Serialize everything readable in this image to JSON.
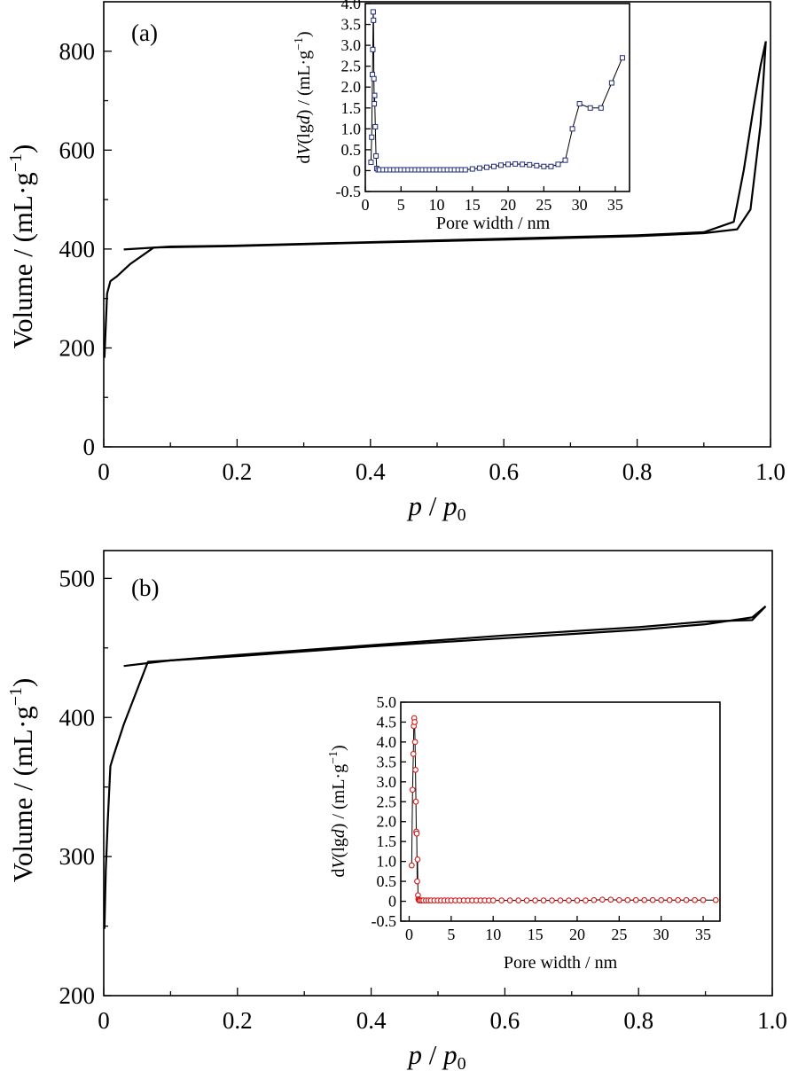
{
  "chart_data": [
    {
      "id": "a",
      "type": "line",
      "panel_label": "(a)",
      "xlabel": {
        "italic": "p",
        "sep": " / ",
        "italic2": "p",
        "sub": "0"
      },
      "ylabel": {
        "main": "Volume / (mL·g",
        "sup": "−1",
        "close": ")"
      },
      "xlim": [
        0,
        1.0
      ],
      "ylim": [
        0,
        900
      ],
      "xticks": [
        0,
        0.2,
        0.4,
        0.6,
        0.8,
        1.0
      ],
      "xtick_labels": [
        "0",
        "0.2",
        "0.4",
        "0.6",
        "0.8",
        "1.0"
      ],
      "yticks": [
        0,
        200,
        400,
        600,
        800
      ],
      "ytick_labels": [
        "0",
        "200",
        "400",
        "600",
        "800"
      ],
      "series": [
        {
          "points": [
            [
              0.001,
              180
            ],
            [
              0.005,
              310
            ],
            [
              0.01,
              335
            ],
            [
              0.02,
              345
            ],
            [
              0.04,
              370
            ],
            [
              0.075,
              403
            ],
            [
              0.2,
              406
            ],
            [
              0.4,
              413
            ],
            [
              0.6,
              419
            ],
            [
              0.8,
              426
            ],
            [
              0.9,
              432
            ],
            [
              0.95,
              440
            ],
            [
              0.97,
              480
            ],
            [
              0.985,
              650
            ],
            [
              0.993,
              820
            ]
          ]
        },
        {
          "points": [
            [
              0.993,
              820
            ],
            [
              0.985,
              770
            ],
            [
              0.975,
              690
            ],
            [
              0.96,
              560
            ],
            [
              0.945,
              455
            ],
            [
              0.9,
              434
            ],
            [
              0.8,
              428
            ],
            [
              0.6,
              421
            ],
            [
              0.4,
              414
            ],
            [
              0.2,
              407
            ],
            [
              0.1,
              405
            ],
            [
              0.03,
              399
            ]
          ]
        }
      ],
      "inset": {
        "type": "line",
        "xlabel": "Pore width / nm",
        "ylabel": {
          "pre": "d",
          "v": "V",
          "mid": "(lg",
          "d": "d",
          "post": ") / (mL·g",
          "sup": "−1",
          "close": ")"
        },
        "xlim": [
          0,
          37
        ],
        "ylim": [
          -0.5,
          4.0
        ],
        "xticks": [
          0,
          5,
          10,
          15,
          20,
          25,
          30,
          35
        ],
        "xtick_labels": [
          "0",
          "5",
          "10",
          "15",
          "20",
          "25",
          "30",
          "35"
        ],
        "yticks": [
          -0.5,
          0,
          0.5,
          1.0,
          1.5,
          2.0,
          2.5,
          3.0,
          3.5,
          4.0
        ],
        "ytick_labels": [
          "-0.5",
          "0",
          "0.5",
          "1.0",
          "1.5",
          "2.0",
          "2.5",
          "3.0",
          "3.5",
          "4.0"
        ],
        "marker": "square",
        "marker_color": "#1f2a7a",
        "x": [
          0.8,
          0.9,
          1.0,
          1.05,
          1.1,
          1.15,
          1.2,
          1.25,
          1.3,
          1.4,
          1.5,
          1.6,
          1.8,
          2.0,
          2.5,
          3.0,
          3.5,
          4.0,
          4.5,
          5.0,
          5.5,
          6.0,
          6.5,
          7.0,
          7.5,
          8.0,
          8.5,
          9.0,
          9.5,
          10.0,
          10.5,
          11.0,
          11.5,
          12.0,
          12.5,
          13.0,
          13.5,
          14.0,
          15.0,
          16.0,
          17.0,
          18.0,
          19.0,
          20.0,
          21.0,
          22.0,
          23.0,
          24.0,
          25.0,
          26.0,
          27.0,
          28.0,
          29.0,
          30.0,
          31.5,
          33.0,
          34.5,
          36.0
        ],
        "y": [
          0.2,
          0.8,
          2.3,
          2.9,
          3.8,
          3.6,
          2.2,
          1.6,
          1.8,
          1.05,
          0.35,
          0.05,
          0.02,
          0.02,
          0.02,
          0.02,
          0.02,
          0.02,
          0.02,
          0.02,
          0.02,
          0.02,
          0.02,
          0.02,
          0.02,
          0.02,
          0.02,
          0.02,
          0.02,
          0.02,
          0.02,
          0.02,
          0.02,
          0.02,
          0.02,
          0.02,
          0.02,
          0.02,
          0.04,
          0.06,
          0.08,
          0.1,
          0.13,
          0.15,
          0.16,
          0.15,
          0.14,
          0.12,
          0.1,
          0.1,
          0.15,
          0.25,
          1.0,
          1.6,
          1.5,
          1.5,
          2.1,
          2.7
        ]
      }
    },
    {
      "id": "b",
      "type": "line",
      "panel_label": "(b)",
      "xlabel": {
        "italic": "p",
        "sep": " / ",
        "italic2": "p",
        "sub": "0"
      },
      "ylabel": {
        "main": "Volume / (mL·g",
        "sup": "−1",
        "close": ")"
      },
      "xlim": [
        0,
        1.0
      ],
      "ylim": [
        200,
        520
      ],
      "xticks": [
        0,
        0.2,
        0.4,
        0.6,
        0.8,
        1.0
      ],
      "xtick_labels": [
        "0",
        "0.2",
        "0.4",
        "0.6",
        "0.8",
        "1.0"
      ],
      "yticks": [
        200,
        300,
        400,
        500
      ],
      "ytick_labels": [
        "200",
        "300",
        "400",
        "500"
      ],
      "series": [
        {
          "points": [
            [
              0.001,
              248
            ],
            [
              0.003,
              290
            ],
            [
              0.006,
              325
            ],
            [
              0.01,
              365
            ],
            [
              0.015,
              373
            ],
            [
              0.03,
              395
            ],
            [
              0.066,
              440
            ],
            [
              0.2,
              444
            ],
            [
              0.4,
              451
            ],
            [
              0.6,
              457
            ],
            [
              0.8,
              463
            ],
            [
              0.9,
              467
            ],
            [
              0.97,
              472
            ],
            [
              0.99,
              480
            ]
          ]
        },
        {
          "points": [
            [
              0.99,
              480
            ],
            [
              0.97,
              470
            ],
            [
              0.9,
              469
            ],
            [
              0.8,
              465
            ],
            [
              0.6,
              459
            ],
            [
              0.4,
              452
            ],
            [
              0.2,
              445
            ],
            [
              0.1,
              441
            ],
            [
              0.03,
              437
            ]
          ]
        }
      ],
      "inset": {
        "type": "line",
        "xlabel": "Pore width / nm",
        "ylabel": {
          "pre": "d",
          "v": "V",
          "mid": "(lg",
          "d": "d",
          "post": ") / (mL·g",
          "sup": "−1",
          "close": ")"
        },
        "xlim": [
          -1,
          37
        ],
        "ylim": [
          -0.5,
          5.0
        ],
        "xticks": [
          0,
          5,
          10,
          15,
          20,
          25,
          30,
          35
        ],
        "xtick_labels": [
          "0",
          "5",
          "10",
          "15",
          "20",
          "25",
          "30",
          "35"
        ],
        "yticks": [
          -0.5,
          0,
          0.5,
          1.0,
          1.5,
          2.0,
          2.5,
          3.0,
          3.5,
          4.0,
          4.5,
          5.0
        ],
        "ytick_labels": [
          "-0.5",
          "0",
          "0.5",
          "1.0",
          "1.5",
          "2.0",
          "2.5",
          "3.0",
          "3.5",
          "4.0",
          "4.5",
          "5.0"
        ],
        "marker": "circle",
        "marker_color": "#d11a1a",
        "x": [
          0.3,
          0.4,
          0.5,
          0.55,
          0.6,
          0.65,
          0.7,
          0.75,
          0.8,
          0.85,
          0.9,
          0.95,
          1.0,
          1.05,
          1.1,
          1.15,
          1.2,
          1.3,
          1.5,
          1.7,
          2.0,
          2.3,
          2.6,
          3.0,
          3.4,
          3.8,
          4.2,
          4.6,
          5.0,
          5.5,
          6.0,
          6.5,
          7.0,
          7.5,
          8.0,
          8.5,
          9.0,
          9.5,
          10.0,
          11.0,
          12.0,
          13.0,
          14.0,
          15.0,
          16.0,
          17.0,
          18.0,
          19.0,
          20.0,
          21.0,
          22.0,
          23.0,
          24.0,
          25.0,
          26.0,
          27.0,
          28.0,
          29.0,
          30.0,
          31.0,
          32.0,
          33.0,
          34.0,
          35.0,
          36.5
        ],
        "y": [
          0.9,
          2.8,
          3.7,
          4.4,
          4.6,
          4.5,
          4.0,
          3.3,
          2.5,
          1.75,
          1.7,
          0.5,
          1.05,
          0.15,
          0.05,
          0.03,
          0.02,
          0.02,
          0.02,
          0.02,
          0.02,
          0.02,
          0.02,
          0.02,
          0.02,
          0.02,
          0.02,
          0.02,
          0.02,
          0.02,
          0.02,
          0.02,
          0.02,
          0.02,
          0.02,
          0.02,
          0.02,
          0.02,
          0.02,
          0.02,
          0.02,
          0.02,
          0.02,
          0.02,
          0.02,
          0.02,
          0.02,
          0.02,
          0.02,
          0.02,
          0.03,
          0.04,
          0.04,
          0.03,
          0.03,
          0.03,
          0.03,
          0.03,
          0.03,
          0.03,
          0.03,
          0.03,
          0.03,
          0.03,
          0.03
        ]
      }
    }
  ]
}
